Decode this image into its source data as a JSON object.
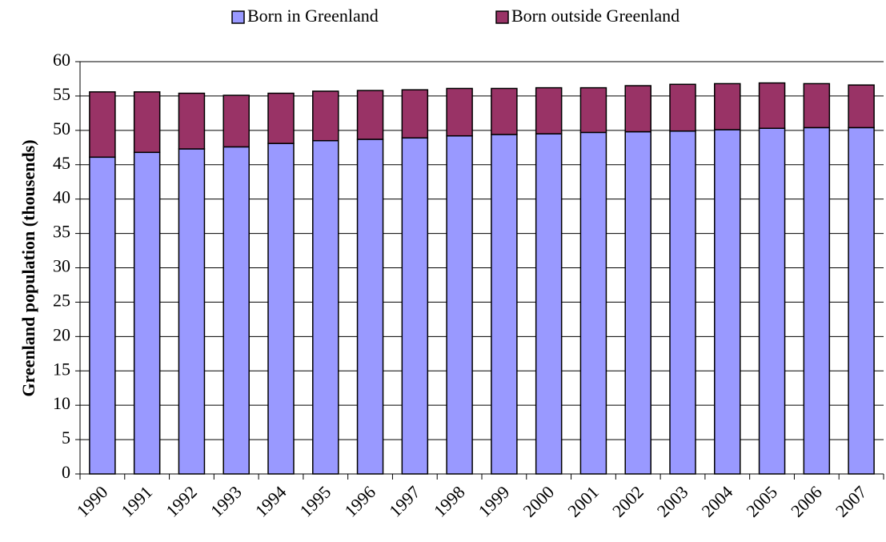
{
  "chart_data": {
    "type": "stacked_bar",
    "y_label": "Greenland population (thousends)",
    "categories": [
      "1990",
      "1991",
      "1992",
      "1993",
      "1994",
      "1995",
      "1996",
      "1997",
      "1998",
      "1999",
      "2000",
      "2001",
      "2002",
      "2003",
      "2004",
      "2005",
      "2006",
      "2007"
    ],
    "series": [
      {
        "name": "Born in Greenland",
        "color": "#9999ff",
        "values": [
          46.1,
          46.8,
          47.3,
          47.6,
          48.1,
          48.5,
          48.7,
          48.9,
          49.2,
          49.4,
          49.5,
          49.7,
          49.8,
          49.9,
          50.1,
          50.3,
          50.4,
          50.4
        ]
      },
      {
        "name": "Born outside Greenland",
        "color": "#993366",
        "values": [
          9.5,
          8.8,
          8.1,
          7.5,
          7.3,
          7.2,
          7.1,
          7.0,
          6.9,
          6.7,
          6.7,
          6.5,
          6.7,
          6.8,
          6.7,
          6.6,
          6.4,
          6.2
        ]
      }
    ],
    "ylim": [
      0,
      60
    ],
    "yticks": [
      0,
      5,
      10,
      15,
      20,
      25,
      30,
      35,
      40,
      45,
      50,
      55,
      60
    ],
    "grid": true
  }
}
